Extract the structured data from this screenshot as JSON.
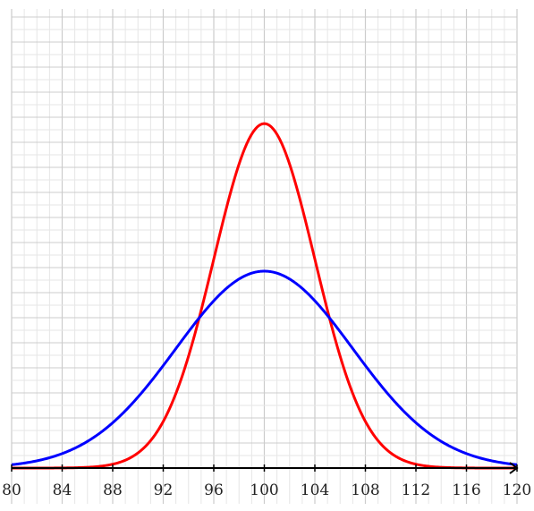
{
  "chart_data": {
    "type": "line",
    "title": "",
    "xlabel": "",
    "ylabel": "",
    "xlim": [
      80,
      120
    ],
    "x_ticks": [
      80,
      84,
      88,
      92,
      96,
      100,
      104,
      108,
      112,
      116,
      120
    ],
    "x_tick_labels": [
      "80",
      "84",
      "88",
      "92",
      "96",
      "100",
      "104",
      "108",
      "112",
      "116",
      "120"
    ],
    "ylim": [
      0,
      0.15
    ],
    "grid": true,
    "legend": "none",
    "series": [
      {
        "color": "#ff0000",
        "distribution": "normal",
        "mean": 100,
        "sd": 4,
        "peak": 0.0997
      },
      {
        "color": "#0000ff",
        "distribution": "normal",
        "mean": 100,
        "sd": 7,
        "peak": 0.057
      }
    ]
  },
  "colors": {
    "grid_major": "#cccccc",
    "grid_minor": "#e6e6e6",
    "axis": "#000000"
  }
}
